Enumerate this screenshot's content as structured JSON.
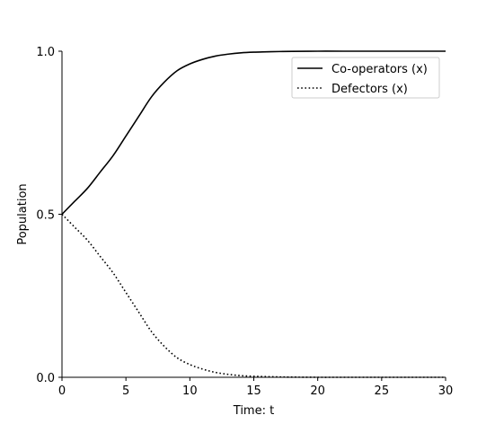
{
  "chart_data": {
    "type": "line",
    "xlabel": "Time: t",
    "ylabel": "Population",
    "xlim": [
      0,
      30
    ],
    "ylim": [
      0,
      1
    ],
    "x_ticks": [
      0,
      5,
      10,
      15,
      20,
      25,
      30
    ],
    "y_ticks": [
      "0.0",
      "0.5",
      "1.0"
    ],
    "y_tick_values": [
      0,
      0.5,
      1
    ],
    "grid": false,
    "legend_position": "top-right",
    "x": [
      0,
      1,
      2,
      3,
      4,
      5,
      6,
      7,
      8,
      9,
      10,
      11,
      12,
      13,
      14,
      15,
      16,
      17,
      18,
      20,
      22,
      25,
      28,
      30
    ],
    "series": [
      {
        "name": "Co-operators (x)",
        "style": "solid",
        "color": "#000000",
        "values": [
          0.5,
          0.54,
          0.58,
          0.63,
          0.68,
          0.74,
          0.8,
          0.86,
          0.905,
          0.94,
          0.961,
          0.975,
          0.985,
          0.991,
          0.995,
          0.997,
          0.998,
          0.999,
          0.9995,
          1.0,
          1.0,
          1.0,
          1.0,
          1.0
        ]
      },
      {
        "name": "Defectors (x)",
        "style": "dotted",
        "color": "#000000",
        "values": [
          0.5,
          0.46,
          0.42,
          0.37,
          0.32,
          0.26,
          0.2,
          0.14,
          0.095,
          0.06,
          0.039,
          0.025,
          0.015,
          0.009,
          0.005,
          0.003,
          0.002,
          0.001,
          0.0005,
          0.0,
          0.0,
          0.0,
          0.0,
          0.0
        ]
      }
    ]
  }
}
